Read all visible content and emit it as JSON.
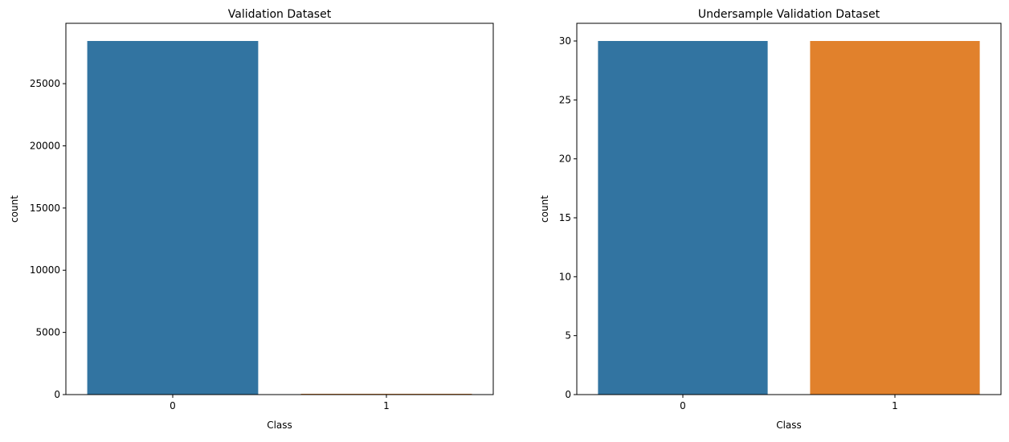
{
  "chart_data": [
    {
      "type": "bar",
      "title": "Validation Dataset",
      "xlabel": "Class",
      "ylabel": "count",
      "categories": [
        "0",
        "1"
      ],
      "values": [
        28432,
        60
      ],
      "colors": [
        "#3274a1",
        "#e1812c"
      ],
      "ylim": [
        0,
        29853
      ],
      "yticks": [
        0,
        5000,
        10000,
        15000,
        20000,
        25000
      ],
      "grid": false,
      "legend": "none"
    },
    {
      "type": "bar",
      "title": "Undersample Validation Dataset",
      "xlabel": "Class",
      "ylabel": "count",
      "categories": [
        "0",
        "1"
      ],
      "values": [
        30,
        30
      ],
      "colors": [
        "#3274a1",
        "#e1812c"
      ],
      "ylim": [
        0,
        31.5
      ],
      "yticks": [
        0,
        5,
        10,
        15,
        20,
        25,
        30
      ],
      "grid": false,
      "legend": "none"
    }
  ]
}
